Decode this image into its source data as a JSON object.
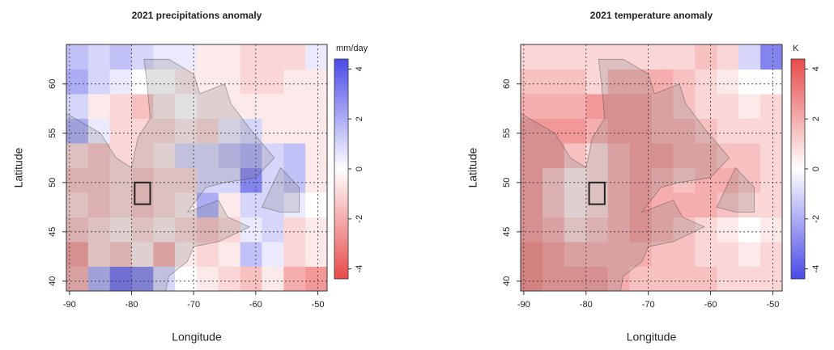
{
  "chart_data": [
    {
      "type": "heatmap",
      "title": "2021 precipitations anomaly",
      "x_label": "Longitude",
      "y_label": "Latitude",
      "colorbar_label": "mm/day",
      "low_color": "#e84a4a",
      "mid_color": "#ffffff",
      "high_color": "#4a4ae8",
      "xlim": [
        -90.5,
        -48.5
      ],
      "ylim": [
        39,
        64
      ],
      "xticks": [
        -90,
        -80,
        -70,
        -60,
        -50
      ],
      "yticks": [
        40,
        45,
        50,
        55,
        60
      ],
      "clim": [
        -4.4,
        4.4
      ],
      "colorbar_ticks": [
        -4,
        -2,
        0,
        2,
        4
      ],
      "grid": true,
      "region": {
        "xlim": [
          -79.5,
          -77
        ],
        "ylim": [
          47.8,
          50
        ]
      },
      "xbins": [
        -90.5,
        -87,
        -83.5,
        -80,
        -76.5,
        -73,
        -69.5,
        -66,
        -62.5,
        -59,
        -55.5,
        -52,
        -48.5
      ],
      "ybins": [
        39,
        41.5,
        44,
        46.5,
        49,
        51.5,
        54,
        56.5,
        59,
        61.5,
        64
      ],
      "z": [
        [
          -2,
          2,
          3.5,
          3,
          1,
          0,
          -0.5,
          -1,
          -1.5,
          -0.5,
          -2,
          -2.5
        ],
        [
          -2.5,
          -1,
          -1.5,
          -0.5,
          -2,
          -0.5,
          -1,
          -0.5,
          1.5,
          0.5,
          -1,
          -0.5
        ],
        [
          -1.5,
          -1,
          -0.5,
          -1,
          -0.5,
          -1,
          -1.5,
          -1,
          0.5,
          1,
          -1,
          -0.5
        ],
        [
          -1,
          -1.5,
          -1,
          -1.5,
          -1,
          -0.5,
          2,
          -0.5,
          1,
          1,
          0.5,
          0
        ],
        [
          -1.5,
          -1.5,
          -1,
          -1.5,
          -1,
          -1,
          1,
          1,
          3,
          1,
          1.5,
          -0.5
        ],
        [
          -1,
          -1.5,
          -1,
          -1,
          -0.5,
          1,
          1,
          1.5,
          2,
          1,
          1.5,
          -0.5
        ],
        [
          2,
          0.5,
          -1,
          -1,
          -1,
          -0.5,
          -1,
          0.5,
          1,
          -0.5,
          -0.5,
          -0.5
        ],
        [
          1,
          -0.5,
          -1,
          -1.5,
          -0.5,
          0,
          -0.5,
          -0.5,
          -0.5,
          -0.5,
          -0.5,
          -0.5
        ],
        [
          2,
          1,
          0.5,
          0,
          0,
          -0.5,
          -0.5,
          -0.5,
          -1,
          -1,
          -0.5,
          -0.5
        ],
        [
          1.5,
          1,
          1.5,
          1,
          0.5,
          0.5,
          -0.5,
          -0.5,
          -1,
          -1,
          -1,
          0.5
        ]
      ]
    },
    {
      "type": "heatmap",
      "title": "2021 temperature anomaly",
      "x_label": "Longitude",
      "y_label": "Latitude",
      "colorbar_label": "K",
      "low_color": "#4a4ae8",
      "mid_color": "#ffffff",
      "high_color": "#e84a4a",
      "xlim": [
        -90.5,
        -48.5
      ],
      "ylim": [
        39,
        64
      ],
      "xticks": [
        -90,
        -80,
        -70,
        -60,
        -50
      ],
      "yticks": [
        40,
        45,
        50,
        55,
        60
      ],
      "clim": [
        -4.4,
        4.4
      ],
      "colorbar_ticks": [
        -4,
        -2,
        0,
        2,
        4
      ],
      "grid": true,
      "region": {
        "xlim": [
          -79.5,
          -77
        ],
        "ylim": [
          47.8,
          50
        ]
      },
      "xbins": [
        -90.5,
        -87,
        -83.5,
        -80,
        -76.5,
        -73,
        -69.5,
        -66,
        -62.5,
        -59,
        -55.5,
        -52,
        -48.5
      ],
      "ybins": [
        39,
        41.5,
        44,
        46.5,
        49,
        51.5,
        54,
        56.5,
        59,
        61.5,
        64
      ],
      "z": [
        [
          3,
          2.5,
          2.5,
          2.5,
          2,
          1.5,
          1.5,
          1.5,
          1.5,
          1,
          1,
          1
        ],
        [
          3,
          2.5,
          2,
          2,
          2,
          2,
          1.5,
          1.5,
          1,
          1,
          0.5,
          1
        ],
        [
          2.5,
          2,
          1,
          1.5,
          2,
          2.5,
          2,
          1.5,
          1,
          0.5,
          0,
          0.5
        ],
        [
          2.5,
          1.5,
          0.5,
          1,
          2,
          2.5,
          2,
          2,
          2,
          1.5,
          1,
          1
        ],
        [
          2.5,
          1.5,
          0.5,
          1,
          2,
          2.5,
          2,
          1.5,
          2,
          2,
          1.5,
          1
        ],
        [
          2.5,
          2.5,
          1.5,
          1,
          2,
          2.5,
          2.5,
          2,
          2,
          1.5,
          1.5,
          1
        ],
        [
          2.5,
          2.5,
          2.5,
          2,
          2.5,
          2.5,
          2,
          2,
          1.5,
          1,
          1,
          1
        ],
        [
          2,
          2,
          2,
          2.5,
          2.5,
          2.5,
          2,
          1.5,
          1,
          1,
          0.5,
          1
        ],
        [
          1.5,
          1.5,
          1.5,
          1,
          2,
          2,
          2,
          1.5,
          1,
          0.5,
          0,
          0
        ],
        [
          1,
          1,
          1,
          1,
          1,
          1,
          1,
          1,
          1.5,
          1,
          -1,
          -3
        ]
      ]
    }
  ]
}
